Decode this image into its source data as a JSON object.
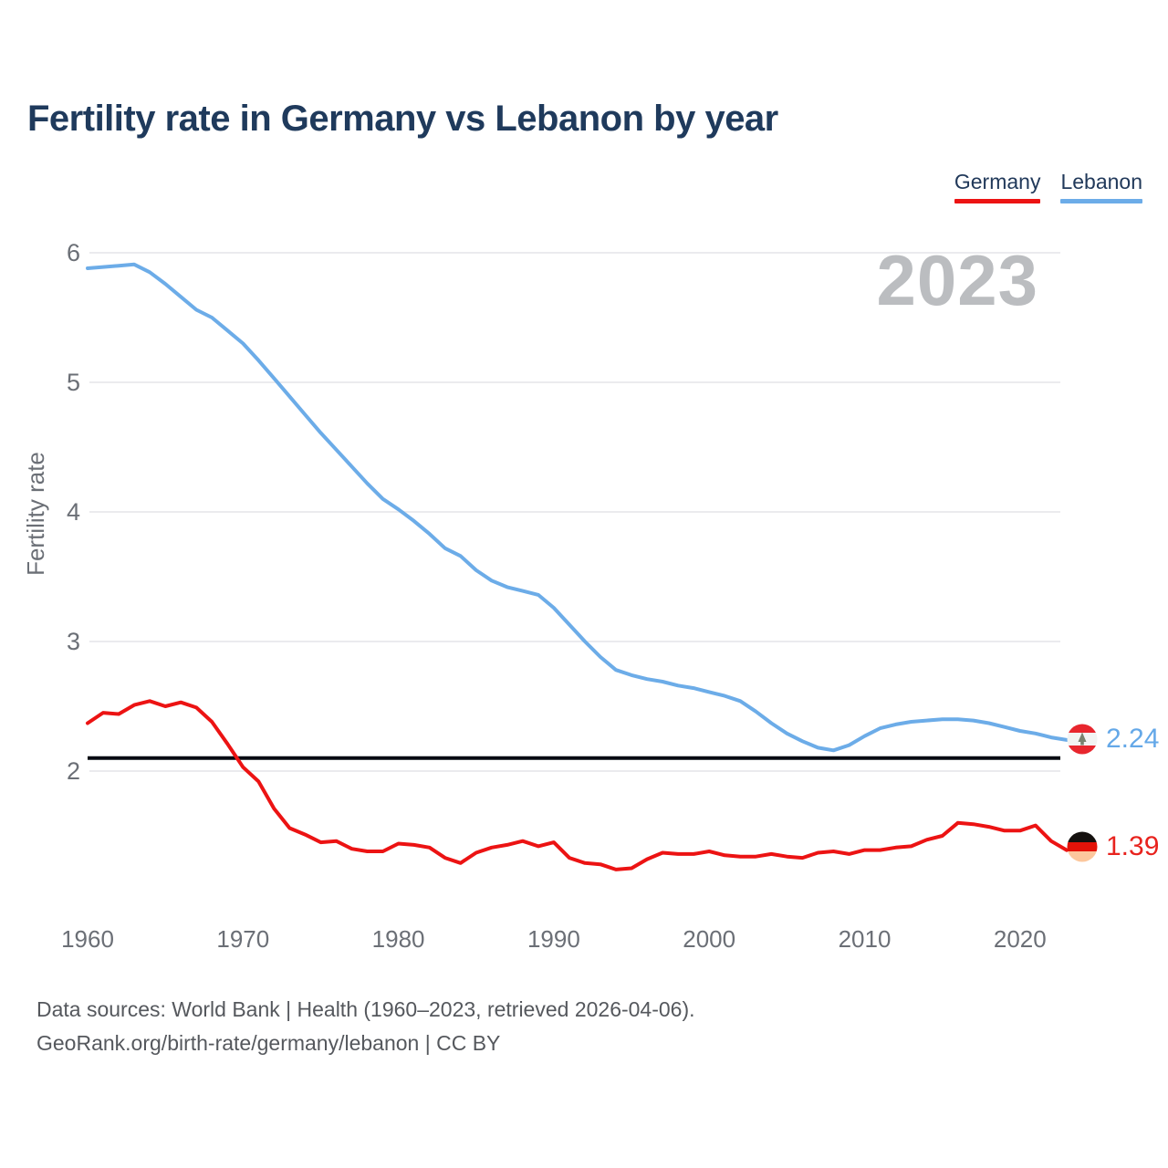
{
  "title": "Fertility rate in Germany vs Lebanon by year",
  "legend": {
    "items": [
      {
        "label": "Germany",
        "color": "#ec1313"
      },
      {
        "label": "Lebanon",
        "color": "#6cace8"
      }
    ]
  },
  "watermark": "2023",
  "end_labels": {
    "lebanon": {
      "value": "2.24",
      "flag": "lebanon-flag"
    },
    "germany": {
      "value": "1.39",
      "flag": "germany-flag"
    }
  },
  "footer": {
    "line1": "Data sources: World Bank | Health (1960–2023, retrieved 2026-04-06).",
    "line2": "GeoRank.org/birth-rate/germany/lebanon | CC BY"
  },
  "chart_data": {
    "type": "line",
    "title": "Fertility rate in Germany vs Lebanon by year",
    "xlabel": "",
    "ylabel": "Fertility rate",
    "xlim": [
      1960,
      2023
    ],
    "ylim": [
      1.1,
      6.15
    ],
    "x_ticks": [
      1960,
      1970,
      1980,
      1990,
      2000,
      2010,
      2020
    ],
    "y_ticks": [
      6,
      5,
      4,
      3,
      2
    ],
    "grid": "horizontal",
    "legend_position": "top-right",
    "reference_line": {
      "value": 2.1,
      "color": "#060a12"
    },
    "x": [
      1960,
      1961,
      1962,
      1963,
      1964,
      1965,
      1966,
      1967,
      1968,
      1969,
      1970,
      1971,
      1972,
      1973,
      1974,
      1975,
      1976,
      1977,
      1978,
      1979,
      1980,
      1981,
      1982,
      1983,
      1984,
      1985,
      1986,
      1987,
      1988,
      1989,
      1990,
      1991,
      1992,
      1993,
      1994,
      1995,
      1996,
      1997,
      1998,
      1999,
      2000,
      2001,
      2002,
      2003,
      2004,
      2005,
      2006,
      2007,
      2008,
      2009,
      2010,
      2011,
      2012,
      2013,
      2014,
      2015,
      2016,
      2017,
      2018,
      2019,
      2020,
      2021,
      2022,
      2023
    ],
    "series": [
      {
        "name": "Germany",
        "color": "#ec1313",
        "end_value": 1.39,
        "values": [
          2.37,
          2.45,
          2.44,
          2.51,
          2.54,
          2.5,
          2.53,
          2.49,
          2.38,
          2.21,
          2.03,
          1.92,
          1.71,
          1.56,
          1.51,
          1.45,
          1.46,
          1.4,
          1.38,
          1.38,
          1.44,
          1.43,
          1.41,
          1.33,
          1.29,
          1.37,
          1.41,
          1.43,
          1.46,
          1.42,
          1.45,
          1.33,
          1.29,
          1.28,
          1.24,
          1.25,
          1.32,
          1.37,
          1.36,
          1.36,
          1.38,
          1.35,
          1.34,
          1.34,
          1.36,
          1.34,
          1.33,
          1.37,
          1.38,
          1.36,
          1.39,
          1.39,
          1.41,
          1.42,
          1.47,
          1.5,
          1.6,
          1.59,
          1.57,
          1.54,
          1.54,
          1.58,
          1.46,
          1.39
        ]
      },
      {
        "name": "Lebanon",
        "color": "#6cace8",
        "end_value": 2.24,
        "values": [
          5.88,
          5.89,
          5.9,
          5.91,
          5.85,
          5.76,
          5.66,
          5.56,
          5.5,
          5.4,
          5.3,
          5.17,
          5.03,
          4.89,
          4.75,
          4.61,
          4.48,
          4.35,
          4.22,
          4.1,
          4.02,
          3.93,
          3.83,
          3.72,
          3.66,
          3.55,
          3.47,
          3.42,
          3.39,
          3.36,
          3.26,
          3.13,
          3.0,
          2.88,
          2.78,
          2.74,
          2.71,
          2.69,
          2.66,
          2.64,
          2.61,
          2.58,
          2.54,
          2.46,
          2.37,
          2.29,
          2.23,
          2.18,
          2.16,
          2.2,
          2.27,
          2.33,
          2.36,
          2.38,
          2.39,
          2.4,
          2.4,
          2.39,
          2.37,
          2.34,
          2.31,
          2.29,
          2.26,
          2.24
        ]
      }
    ]
  }
}
